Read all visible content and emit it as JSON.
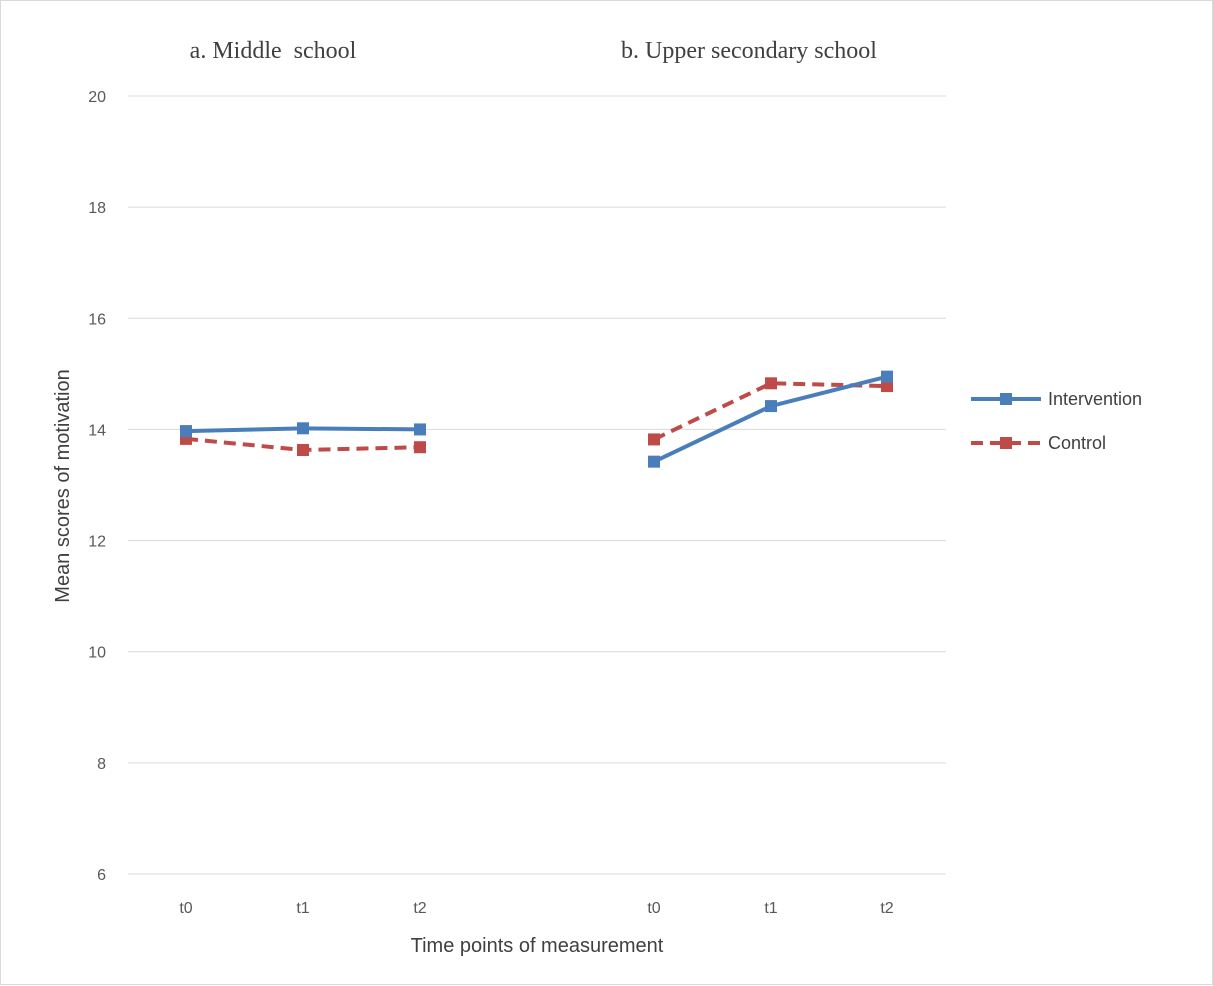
{
  "chart_data": {
    "type": "line",
    "ylabel": "Mean scores of motivation",
    "xlabel": "Time points of measurement",
    "ylim": [
      6,
      20
    ],
    "yticks": [
      6,
      8,
      10,
      12,
      14,
      16,
      18,
      20
    ],
    "grid": true,
    "legend_position": "right",
    "colors": {
      "Intervention": "#4a7ebb",
      "Control": "#be4b48"
    },
    "panels": [
      {
        "title": "a. Middle  school",
        "categories": [
          "t0",
          "t1",
          "t2"
        ],
        "series": [
          {
            "name": "Intervention",
            "values": [
              13.97,
              14.02,
              14.0
            ]
          },
          {
            "name": "Control",
            "values": [
              13.83,
              13.63,
              13.68
            ]
          }
        ]
      },
      {
        "title": "b. Upper secondary school",
        "categories": [
          "t0",
          "t1",
          "t2"
        ],
        "series": [
          {
            "name": "Intervention",
            "values": [
              13.42,
              14.42,
              14.95
            ]
          },
          {
            "name": "Control",
            "values": [
              13.82,
              14.83,
              14.78
            ]
          }
        ]
      }
    ]
  }
}
